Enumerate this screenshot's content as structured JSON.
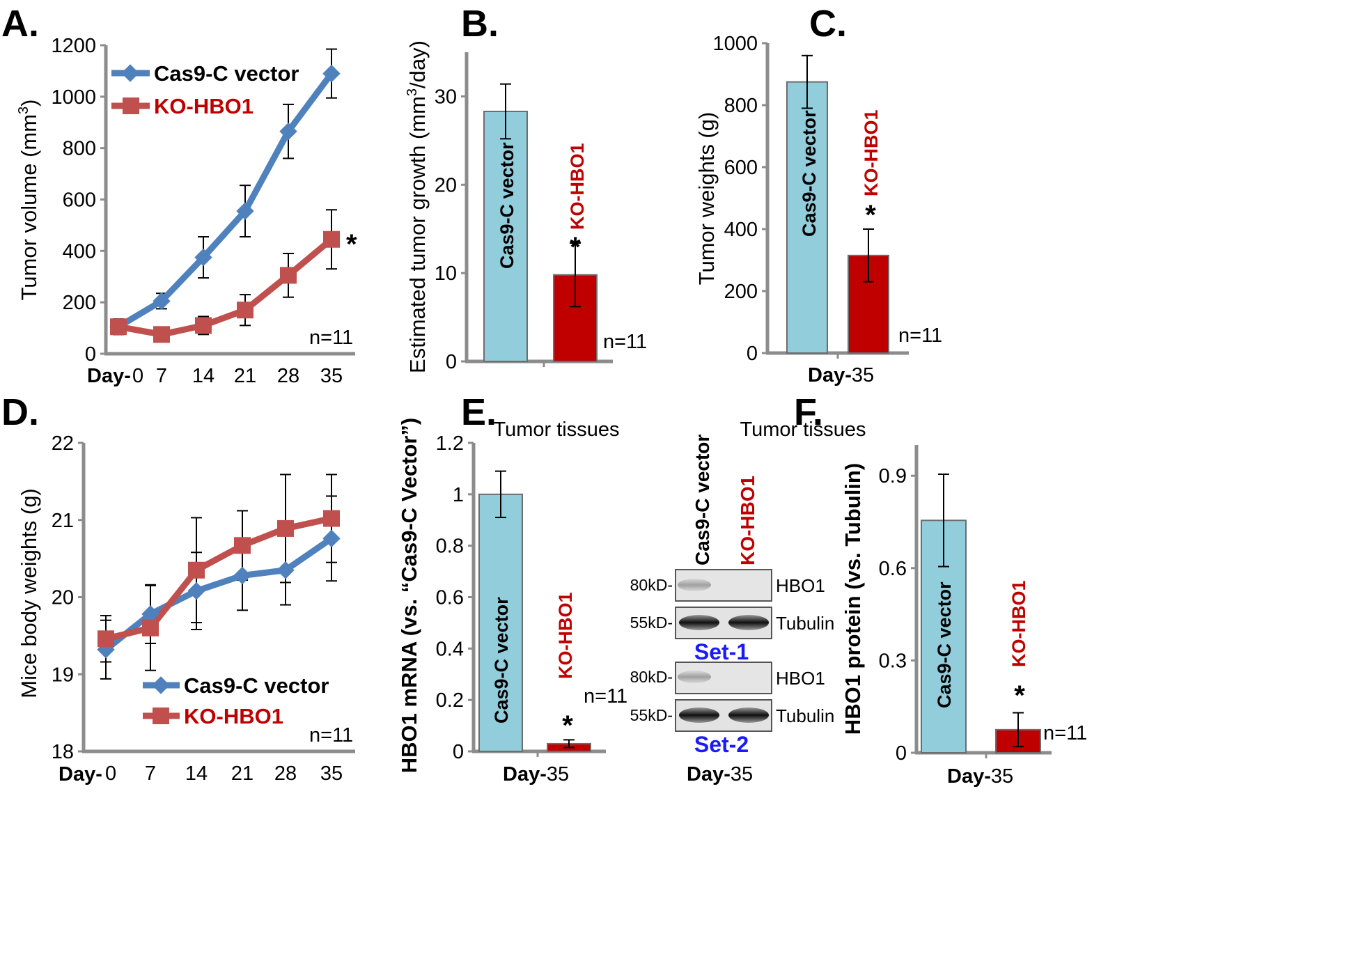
{
  "colors": {
    "blue": "#4f81bd",
    "red": "#c0504d",
    "light_blue": "#92cddc",
    "dark_red": "#c00000",
    "set_blue": "#1a1aff",
    "axis": "#8c8c8c"
  },
  "panel_labels": [
    "A.",
    "B.",
    "C.",
    "D.",
    "E.",
    "F."
  ],
  "common": {
    "day_bold": "Day-",
    "n_label": "n=11",
    "star": "*",
    "day35": "35",
    "day0": "0"
  },
  "subtitles": {
    "e": "Tumor tissues",
    "f": "Tumor tissues"
  },
  "blot": {
    "col_labels": [
      "Cas9-C vector",
      "KO-HBO1"
    ],
    "sets": [
      {
        "label": "Set-1",
        "rows": [
          {
            "kd": "80kD-",
            "protein": "HBO1"
          },
          {
            "kd": "55kD-",
            "protein": "Tubulin"
          }
        ]
      },
      {
        "label": "Set-2",
        "rows": [
          {
            "kd": "80kD-",
            "protein": "HBO1"
          },
          {
            "kd": "55kD-",
            "protein": "Tubulin"
          }
        ]
      }
    ],
    "day_label": "Day-",
    "day_value": "35"
  },
  "chart_data": [
    {
      "id": "A",
      "type": "line",
      "x": [
        0,
        7,
        14,
        21,
        28,
        35
      ],
      "x_ticks": [
        "0",
        "7",
        "14",
        "21",
        "28",
        "35"
      ],
      "xlabel_prefix": "Day-",
      "ylabel": "Tumor volume (mm3)",
      "ylabel_parts": [
        "Tumor volume (mm",
        "3",
        ")"
      ],
      "ylim": [
        0,
        1200
      ],
      "y_ticks": [
        0,
        200,
        400,
        600,
        800,
        1000,
        1200
      ],
      "series": [
        {
          "name": "Cas9-C vector",
          "marker": "diamond",
          "values": [
            105,
            205,
            375,
            555,
            865,
            1090
          ],
          "errors": [
            30,
            30,
            80,
            100,
            105,
            95
          ]
        },
        {
          "name": "KO-HBO1",
          "marker": "square",
          "values": [
            105,
            75,
            110,
            170,
            305,
            445
          ],
          "errors": [
            30,
            25,
            35,
            60,
            85,
            115
          ]
        }
      ],
      "annotations": [
        "*",
        "n=11"
      ]
    },
    {
      "id": "B",
      "type": "bar",
      "categories": [
        "Cas9-C vector",
        "KO-HBO1"
      ],
      "values": [
        28.3,
        9.8
      ],
      "errors": [
        3.1,
        3.6
      ],
      "ylabel": "Estimated tumor growth (mm3/day)",
      "ylabel_parts": [
        "Estimated tumor growth (mm",
        "3",
        "/day)"
      ],
      "ylim": [
        0,
        35
      ],
      "y_ticks": [
        0,
        10,
        20,
        30
      ],
      "annotations": [
        "*",
        "n=11"
      ]
    },
    {
      "id": "C",
      "type": "bar",
      "categories": [
        "Cas9-C vector",
        "KO-HBO1"
      ],
      "values": [
        875,
        315
      ],
      "errors": [
        85,
        85
      ],
      "ylabel": "Tumor weights (g)",
      "xlabel_prefix": "Day-",
      "xlabel_value": "35",
      "ylim": [
        0,
        1000
      ],
      "y_ticks": [
        0,
        200,
        400,
        600,
        800,
        1000
      ],
      "annotations": [
        "*",
        "n=11"
      ]
    },
    {
      "id": "D",
      "type": "line",
      "x": [
        0,
        7,
        14,
        21,
        28,
        35
      ],
      "x_ticks": [
        "0",
        "7",
        "14",
        "21",
        "28",
        "35"
      ],
      "xlabel_prefix": "Day-",
      "ylabel": "Mice body weights (g)",
      "ylim": [
        18,
        22
      ],
      "y_ticks": [
        18,
        19,
        20,
        21,
        22
      ],
      "series": [
        {
          "name": "Cas9-C vector",
          "marker": "diamond",
          "values": [
            19.32,
            19.78,
            20.08,
            20.28,
            20.35,
            20.76
          ],
          "errors": [
            0.38,
            0.38,
            0.5,
            0.45,
            0.45,
            0.55
          ]
        },
        {
          "name": "KO-HBO1",
          "marker": "square",
          "values": [
            19.46,
            19.6,
            20.35,
            20.67,
            20.89,
            21.02
          ],
          "errors": [
            0.3,
            0.55,
            0.68,
            0.45,
            0.7,
            0.57
          ]
        }
      ],
      "annotations": [
        "n=11"
      ]
    },
    {
      "id": "E",
      "type": "bar",
      "title": "Tumor tissues",
      "categories": [
        "Cas9-C vector",
        "KO-HBO1"
      ],
      "values": [
        1.0,
        0.03
      ],
      "errors": [
        0.09,
        0.015
      ],
      "ylabel": "HBO1 mRNA (vs. “Cas9-C Vector”)",
      "xlabel_prefix": "Day-",
      "xlabel_value": "35",
      "ylim": [
        0,
        1.2
      ],
      "y_ticks": [
        "0",
        "0.2",
        "0.4",
        "0.6",
        "0.8",
        "1",
        "1.2"
      ],
      "annotations": [
        "*",
        "n=11"
      ]
    },
    {
      "id": "F",
      "type": "bar",
      "categories": [
        "Cas9-C vector",
        "KO-HBO1"
      ],
      "values": [
        0.755,
        0.075
      ],
      "errors": [
        0.15,
        0.055
      ],
      "ylabel": "HBO1 protein (vs. Tubulin)",
      "xlabel_prefix": "Day-",
      "xlabel_value": "35",
      "ylim": [
        0,
        1.0
      ],
      "y_ticks": [
        "0",
        "0.3",
        "0.6",
        "0.9"
      ],
      "annotations": [
        "*",
        "n=11"
      ]
    }
  ]
}
